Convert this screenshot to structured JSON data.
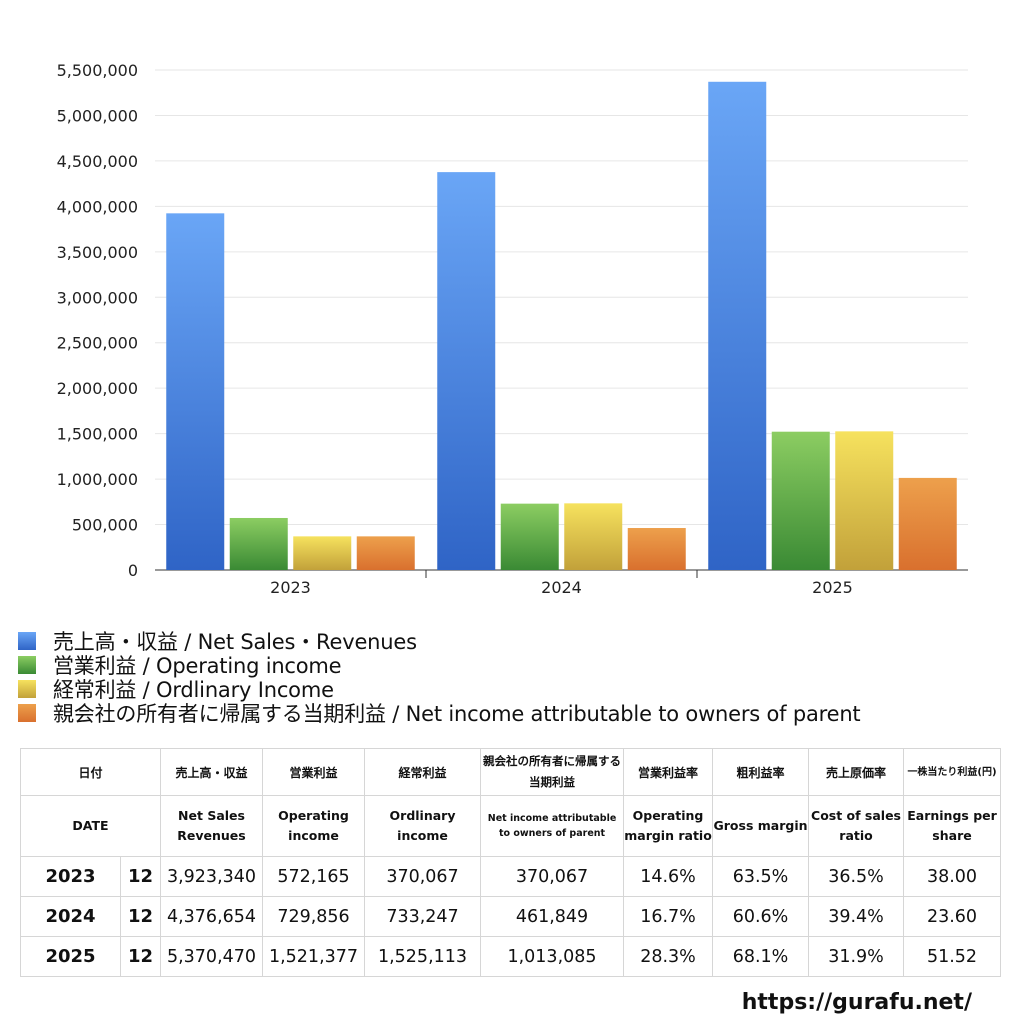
{
  "chart_data": {
    "type": "bar",
    "categories": [
      "2023",
      "2024",
      "2025"
    ],
    "ylim": [
      0,
      5500000
    ],
    "yticks": [
      0,
      500000,
      1000000,
      1500000,
      2000000,
      2500000,
      3000000,
      3500000,
      4000000,
      4500000,
      5000000,
      5500000
    ],
    "grid": true,
    "legend_position": "bottom",
    "series": [
      {
        "name": "売上高・収益 / Net Sales・Revenues",
        "values": [
          3923340,
          4376654,
          5370470
        ],
        "color_top": "#6aa6f6",
        "color_bottom": "#2f64c6"
      },
      {
        "name": "営業利益 / Operating income",
        "values": [
          572165,
          729856,
          1521377
        ],
        "color_top": "#8ccd62",
        "color_bottom": "#3a8a34"
      },
      {
        "name": "経常利益 / Ordlinary Income",
        "values": [
          370067,
          733247,
          1525113
        ],
        "color_top": "#f6e25e",
        "color_bottom": "#c2a13a"
      },
      {
        "name": "親会社の所有者に帰属する当期利益 / Net income attributable to owners of parent",
        "values": [
          370067,
          461849,
          1013085
        ],
        "color_top": "#eda04c",
        "color_bottom": "#d9702e"
      }
    ]
  },
  "table": {
    "jp_headers": [
      "日付",
      "売上高・収益",
      "営業利益",
      "経常利益",
      "親会社の所有者に帰属する当期利益",
      "営業利益率",
      "粗利益率",
      "売上原価率",
      "一株当たり利益(円)"
    ],
    "en_headers": [
      "DATE",
      "Net Sales Revenues",
      "Operating income",
      "Ordlinary income",
      "Net income attributable to owners of parent",
      "Operating margin ratio",
      "Gross margin",
      "Cost of sales ratio",
      "Earnings per share"
    ],
    "rows": [
      {
        "year": "2023",
        "month": "12",
        "sales": "3,923,340",
        "op": "572,165",
        "ord": "370,067",
        "net": "370,067",
        "opm": "14.6%",
        "gm": "63.5%",
        "cogs": "36.5%",
        "eps": "38.00"
      },
      {
        "year": "2024",
        "month": "12",
        "sales": "4,376,654",
        "op": "729,856",
        "ord": "733,247",
        "net": "461,849",
        "opm": "16.7%",
        "gm": "60.6%",
        "cogs": "39.4%",
        "eps": "23.60"
      },
      {
        "year": "2025",
        "month": "12",
        "sales": "5,370,470",
        "op": "1,521,377",
        "ord": "1,525,113",
        "net": "1,013,085",
        "opm": "28.3%",
        "gm": "68.1%",
        "cogs": "31.9%",
        "eps": "51.52"
      }
    ]
  },
  "site_url": "https://gurafu.net/"
}
